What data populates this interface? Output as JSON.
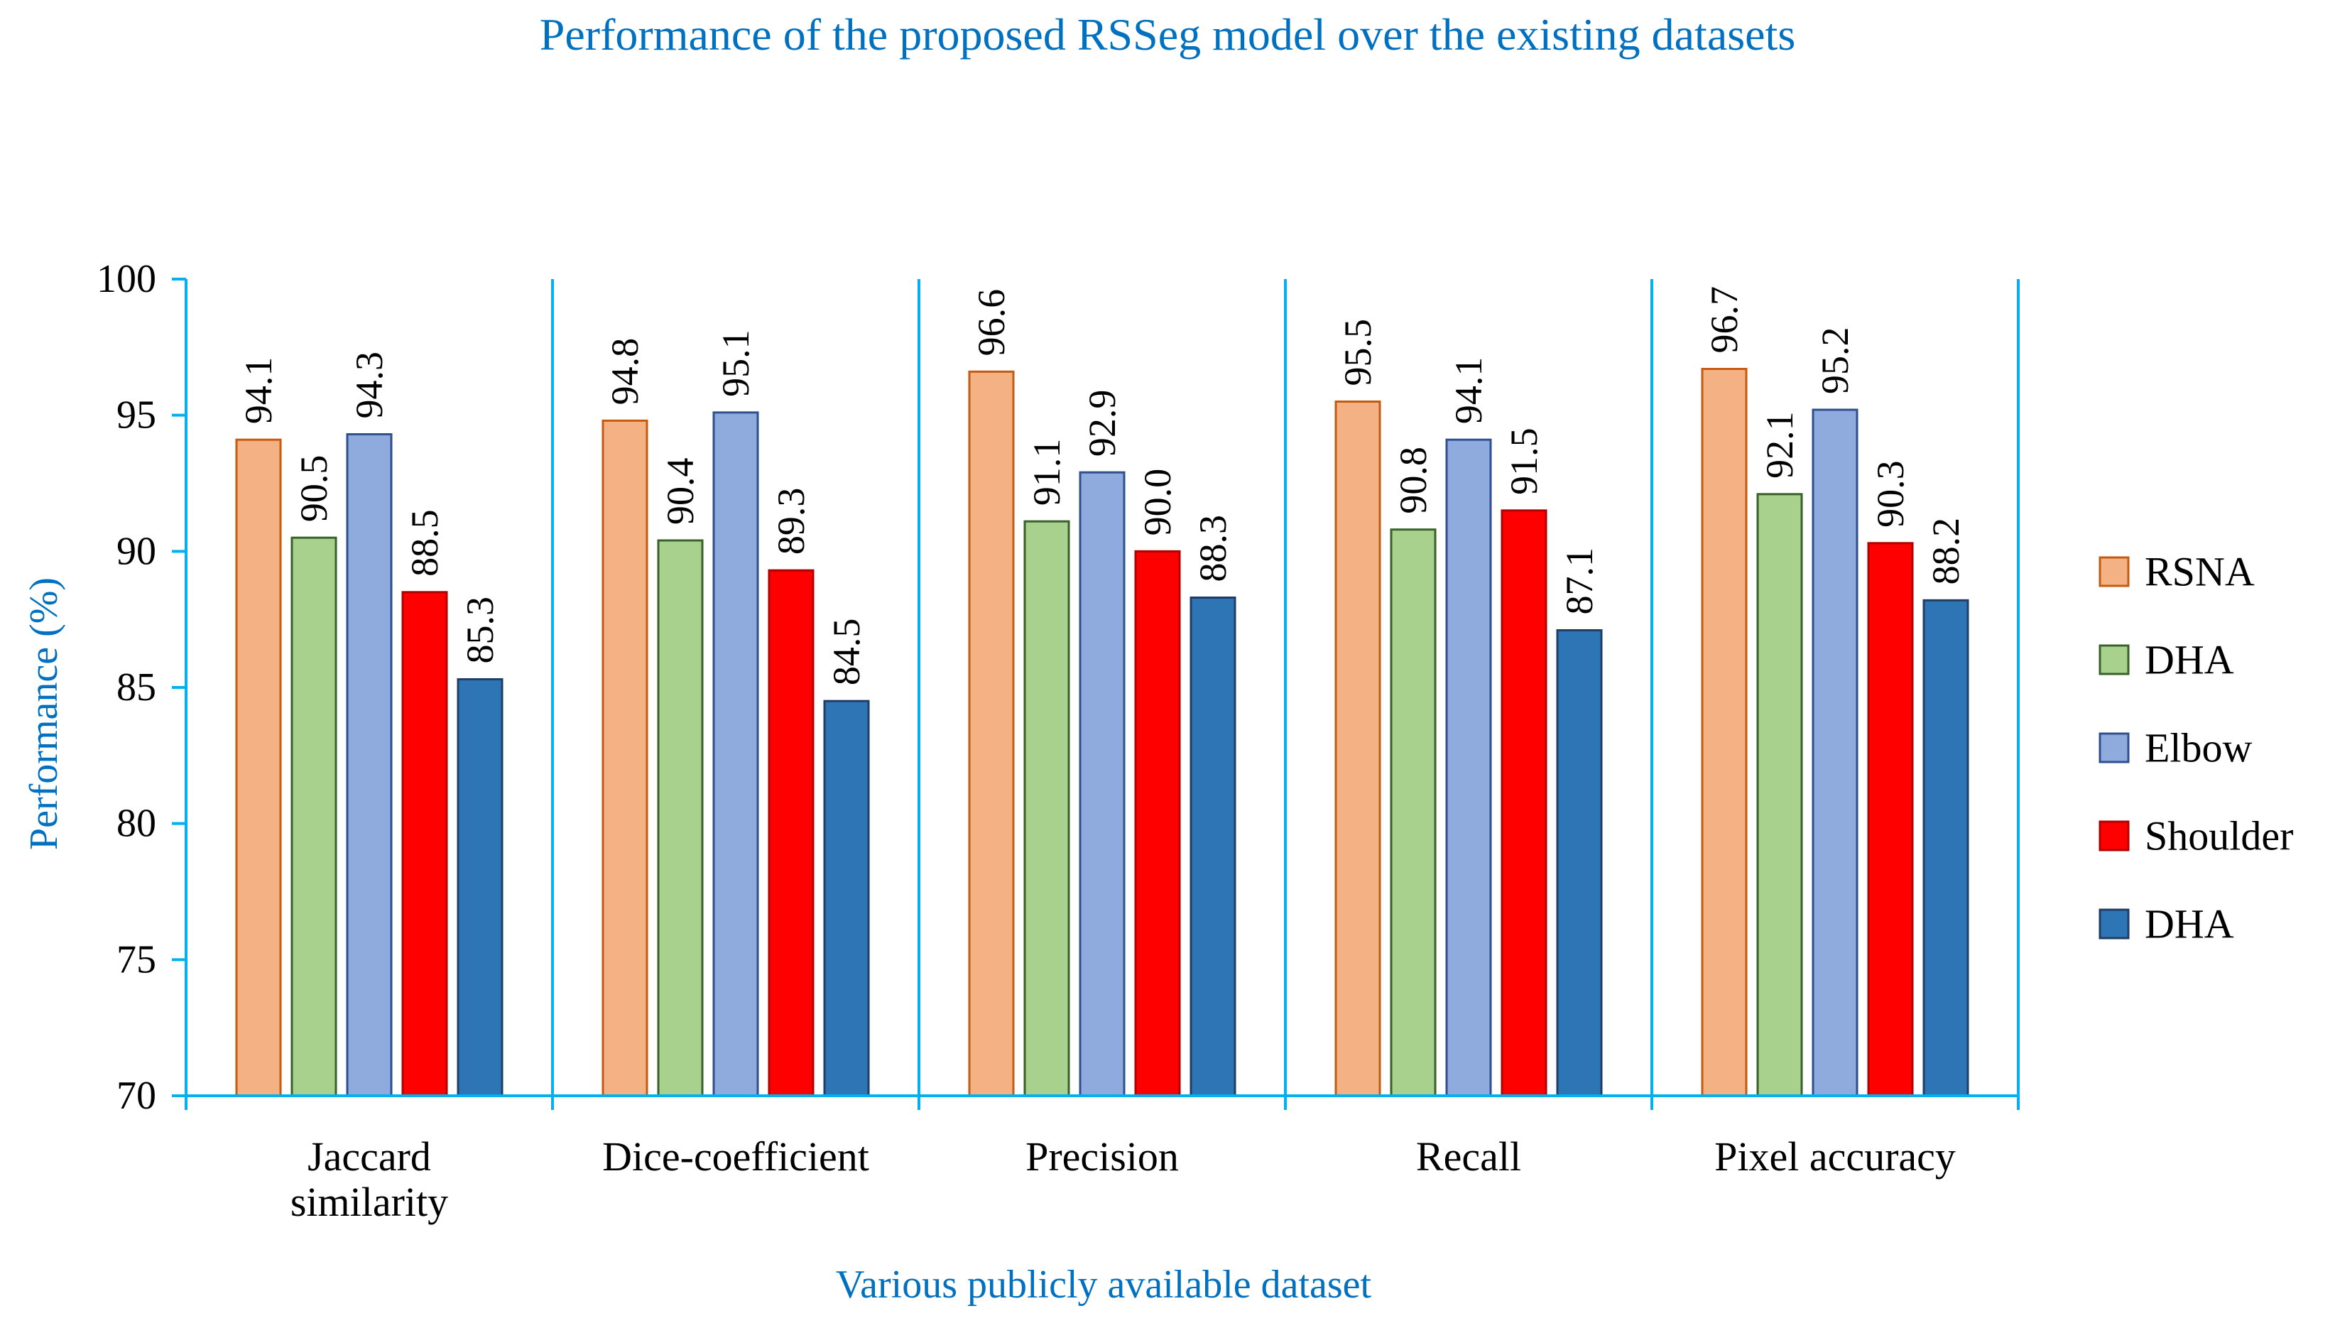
{
  "chart_data": {
    "type": "bar",
    "title": "Performance of the proposed RSSeg model over the existing datasets",
    "xlabel": "Various publicly available dataset",
    "ylabel": "Performance (%)",
    "ylim": [
      70,
      100
    ],
    "yticks": [
      70,
      75,
      80,
      85,
      90,
      95,
      100
    ],
    "categories": [
      [
        "Jaccard",
        "similarity"
      ],
      [
        "Dice-coefficient"
      ],
      [
        "Precision"
      ],
      [
        "Recall"
      ],
      [
        "Pixel accuracy"
      ]
    ],
    "series": [
      {
        "name": "RSNA",
        "color": "#F4B183",
        "edge": "#C55A11",
        "values": [
          94.1,
          94.8,
          96.6,
          95.5,
          96.7
        ]
      },
      {
        "name": "DHA",
        "color": "#A9D18E",
        "edge": "#38622A",
        "values": [
          90.5,
          90.4,
          91.1,
          90.8,
          92.1
        ]
      },
      {
        "name": "Elbow",
        "color": "#8FAADC",
        "edge": "#2F4F8F",
        "values": [
          94.3,
          95.1,
          92.9,
          94.1,
          95.2
        ]
      },
      {
        "name": "Shoulder",
        "color": "#FF0000",
        "edge": "#B00000",
        "values": [
          88.5,
          89.3,
          90.0,
          91.5,
          90.3
        ]
      },
      {
        "name": "DHA",
        "color": "#2E75B6",
        "edge": "#1F3D66",
        "values": [
          85.3,
          84.5,
          88.3,
          87.1,
          88.2
        ]
      }
    ],
    "data_labels": [
      [
        "94.1",
        "94.8",
        "96.6",
        "95.5",
        "96.7"
      ],
      [
        "90.5",
        "90.4",
        "91.1",
        "90.8",
        "92.1"
      ],
      [
        "94.3",
        "95.1",
        "92.9",
        "94.1",
        "95.2"
      ],
      [
        "88.5",
        "89.3",
        "90.0",
        "91.5",
        "90.3"
      ],
      [
        "85.3",
        "84.5",
        "88.3",
        "87.1",
        "88.2"
      ]
    ],
    "legend_position": "right",
    "axis_color": "#00B0F0",
    "title_color": "#0070C0",
    "grid": false
  }
}
